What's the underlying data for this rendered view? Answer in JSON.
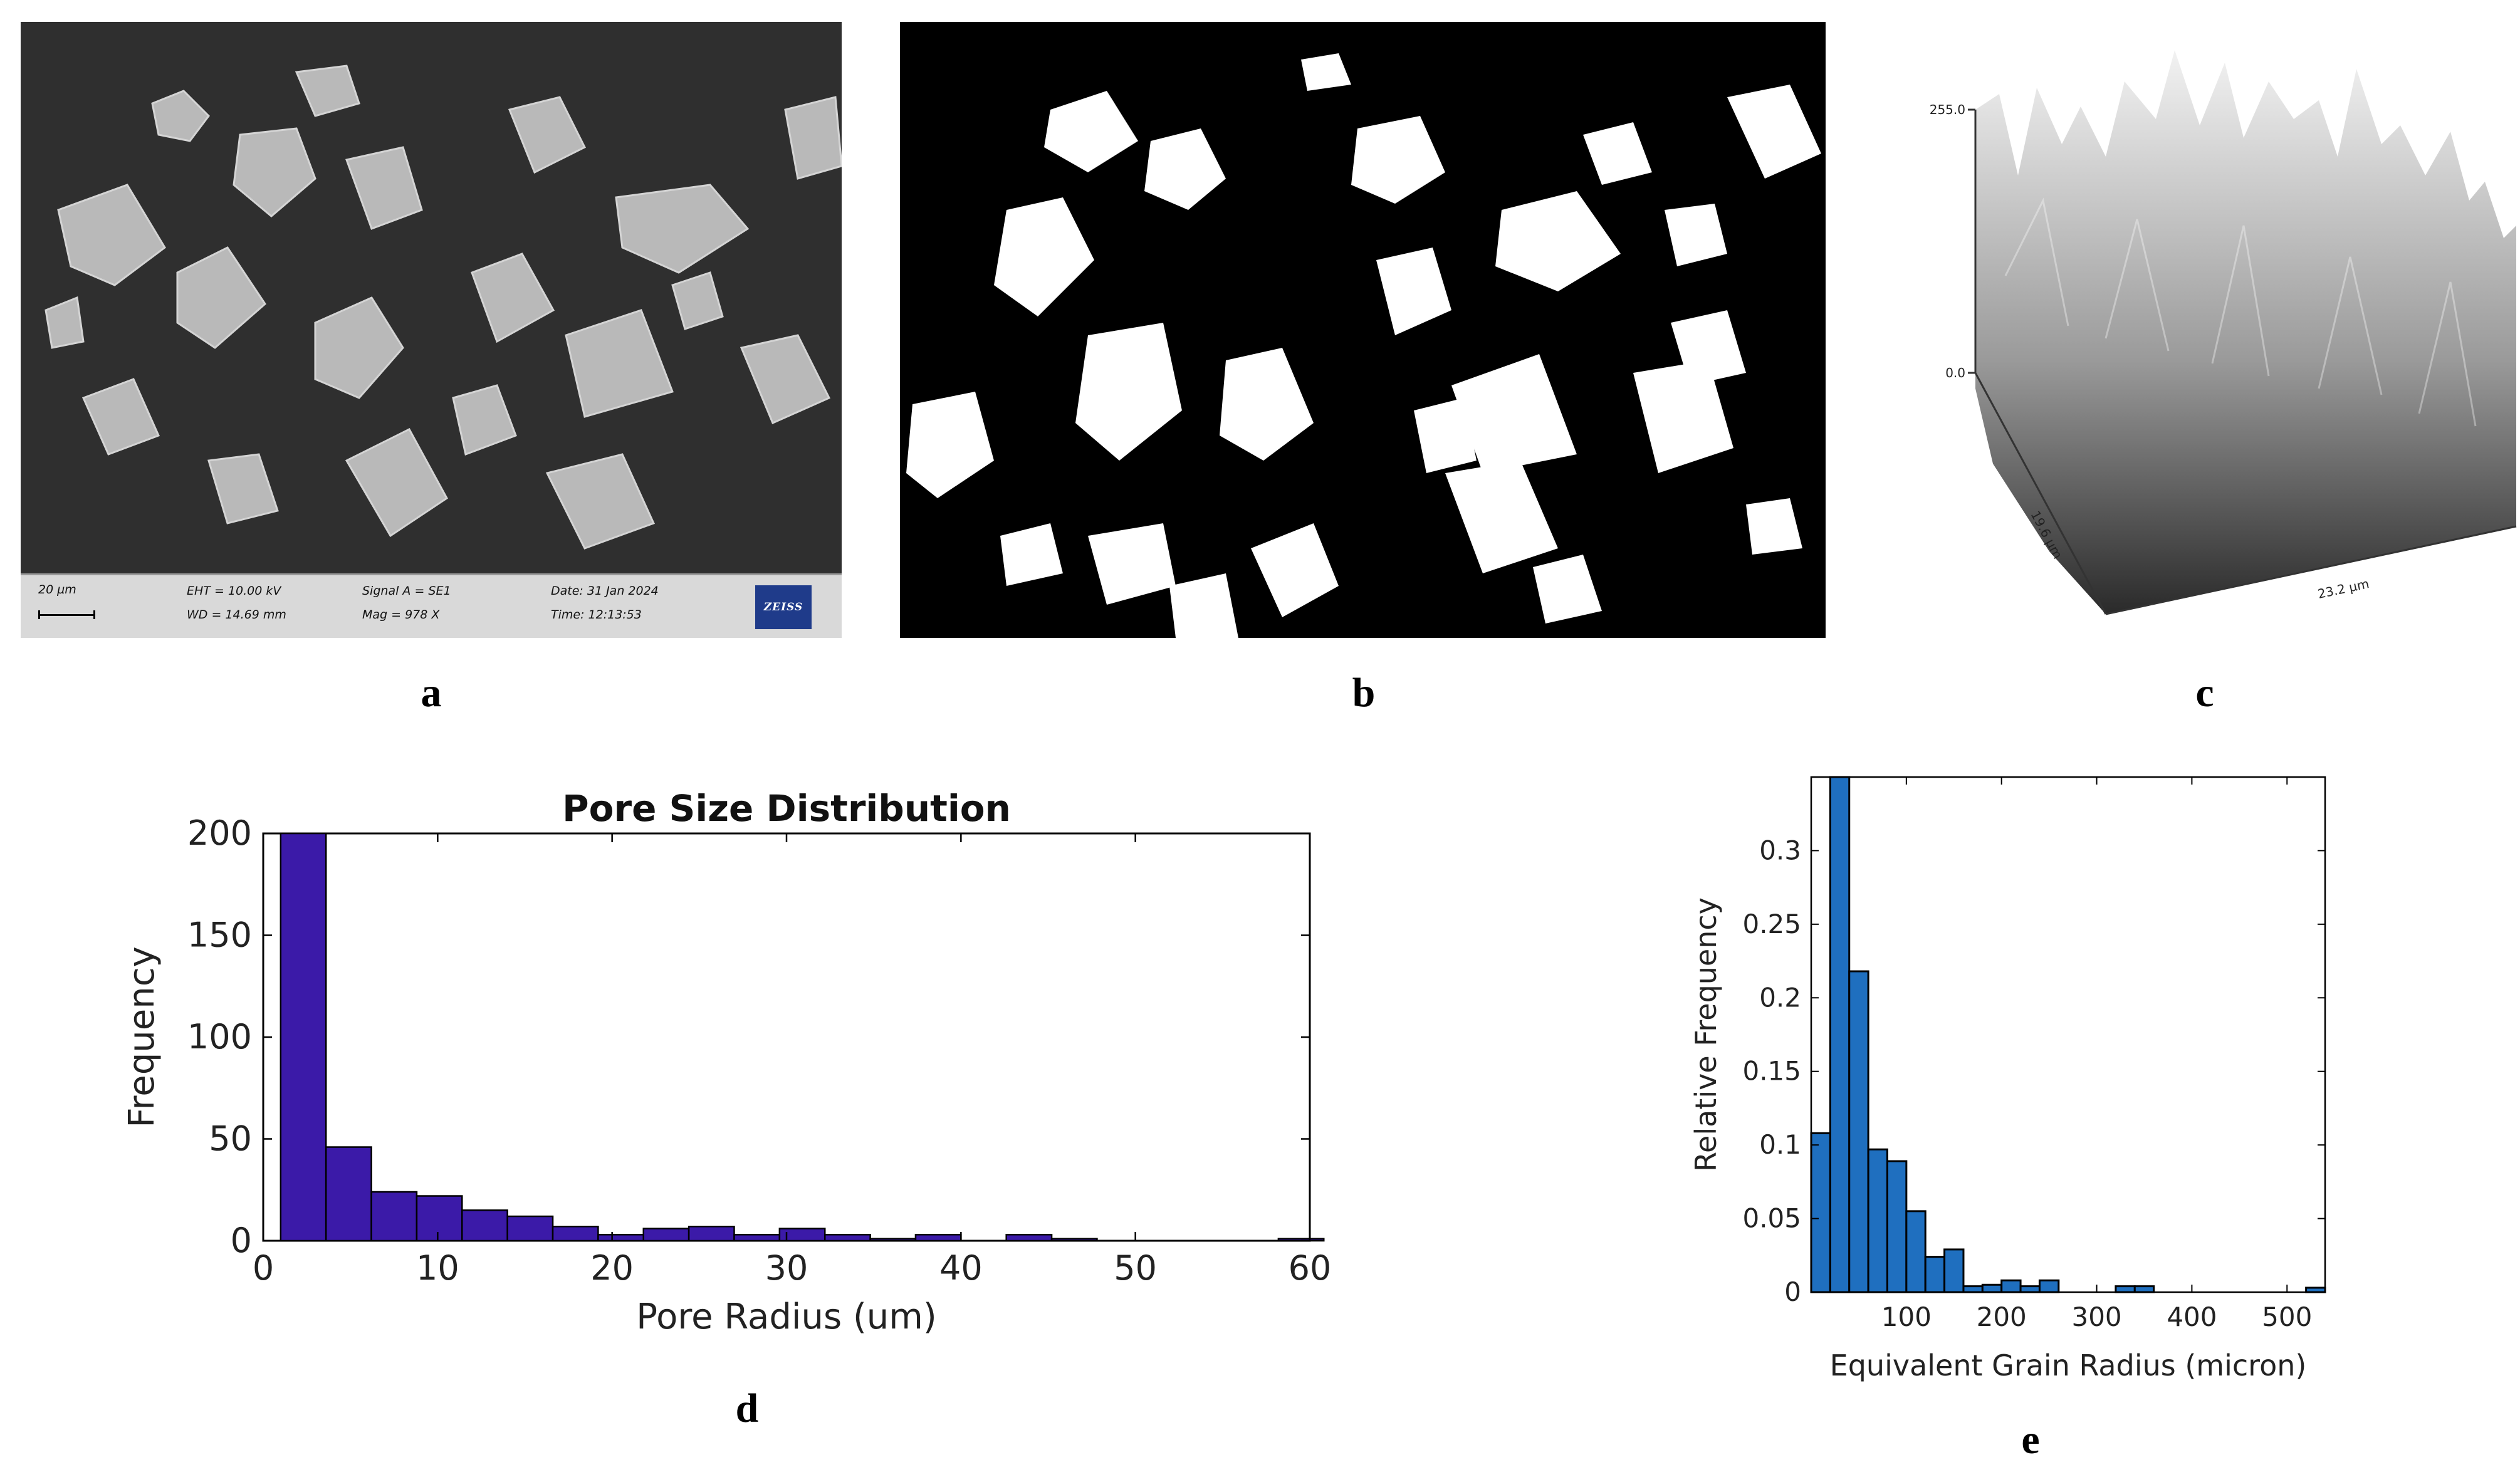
{
  "panels": {
    "a": {
      "letter": "a",
      "scale_label": "20 µm",
      "eht": "EHT = 10.00 kV",
      "wd": "WD = 14.69 mm",
      "signal": "Signal A = SE1",
      "mag": "Mag =    978 X",
      "date": "Date: 31 Jan 2024",
      "time": "Time: 12:13:53",
      "logo_text": "ZEISS"
    },
    "b": {
      "letter": "b"
    },
    "c": {
      "letter": "c",
      "z_max": "255.0",
      "z_min": "0.0",
      "depth_label": "19.6 µm",
      "width_label": "23.2 µm"
    },
    "d": {
      "letter": "d"
    },
    "e": {
      "letter": "e"
    }
  },
  "chart_data": [
    {
      "id": "d",
      "type": "bar",
      "title": "Pore Size Distribution",
      "xlabel": "Pore Radius (um)",
      "ylabel": "Frequency",
      "xlim": [
        0,
        60
      ],
      "ylim": [
        0,
        200
      ],
      "xticks": [
        0,
        10,
        20,
        30,
        40,
        50,
        60
      ],
      "yticks": [
        0,
        50,
        100,
        150,
        200
      ],
      "bin_edges": [
        1,
        3.6,
        6.2,
        8.8,
        11.4,
        14,
        16.6,
        19.2,
        21.8,
        24.4,
        27,
        29.6,
        32.2,
        34.8,
        37.4,
        40,
        42.6,
        45.2,
        47.8,
        50.4,
        53,
        55.6,
        58.2
      ],
      "values": [
        200,
        46,
        24,
        22,
        15,
        12,
        7,
        3,
        6,
        7,
        3,
        6,
        3,
        1,
        3,
        0,
        3,
        1,
        0,
        0,
        0,
        0,
        1
      ],
      "bar_color": "#3b1aa8"
    },
    {
      "id": "e",
      "type": "bar",
      "title": "",
      "xlabel": "Equivalent Grain Radius (micron)",
      "ylabel": "Relative Frequency",
      "xlim": [
        0,
        540
      ],
      "ylim": [
        0,
        0.35
      ],
      "xticks": [
        100,
        200,
        300,
        400,
        500
      ],
      "yticks": [
        0,
        0.05,
        0.1,
        0.15,
        0.2,
        0.25,
        0.3
      ],
      "ytick_labels": [
        "0",
        "0.05",
        "0.1",
        "0.15",
        "0.2",
        "0.25",
        "0.3"
      ],
      "bin_width": 20,
      "bin_centers": [
        10,
        30,
        50,
        70,
        90,
        110,
        130,
        150,
        170,
        190,
        210,
        230,
        250,
        270,
        290,
        310,
        330,
        350,
        370,
        390,
        410,
        430,
        450,
        470,
        490,
        510,
        530
      ],
      "values": [
        0.108,
        0.35,
        0.218,
        0.097,
        0.089,
        0.055,
        0.024,
        0.029,
        0.004,
        0.005,
        0.008,
        0.004,
        0.008,
        0,
        0,
        0,
        0.004,
        0.004,
        0,
        0,
        0,
        0,
        0,
        0,
        0,
        0,
        0.003
      ],
      "bar_color": "#1f6fbf"
    }
  ]
}
